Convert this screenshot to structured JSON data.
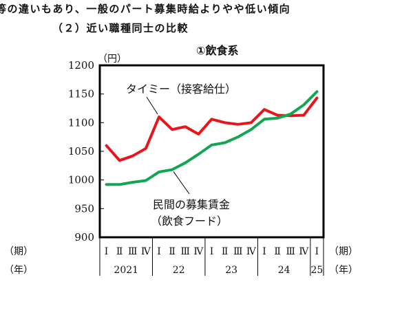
{
  "header": {
    "line1": "等の違いもあり、一般のパート募集時給よりやや低い傾向",
    "line2": "（２）近い職種同士の比較",
    "chart_title": "①飲食系"
  },
  "colors": {
    "timee": "#e8161b",
    "private": "#13a650",
    "frame": "#000000"
  },
  "chart_data": {
    "type": "line",
    "title": "①飲食系",
    "ylabel": "（円）",
    "ylim": [
      900,
      1200
    ],
    "yticks": [
      900,
      950,
      1000,
      1050,
      1100,
      1150,
      1200
    ],
    "quarter_labels": [
      "Ⅰ",
      "Ⅱ",
      "Ⅲ",
      "Ⅳ",
      "Ⅰ",
      "Ⅱ",
      "Ⅲ",
      "Ⅳ",
      "Ⅰ",
      "Ⅱ",
      "Ⅲ",
      "Ⅳ",
      "Ⅰ",
      "Ⅱ",
      "Ⅲ",
      "Ⅳ",
      "Ⅰ"
    ],
    "year_labels": [
      "2021",
      "22",
      "23",
      "24",
      "25"
    ],
    "period_label": "（期）",
    "year_label": "（年）",
    "series": [
      {
        "name": "タイミー（接客給仕）",
        "values": [
          1060,
          1034,
          1042,
          1055,
          1110,
          1088,
          1093,
          1080,
          1106,
          1100,
          1097,
          1100,
          1123,
          1113,
          1112,
          1113,
          1143
        ]
      },
      {
        "name": "民間の募集賃金（飲食フード）",
        "label_lines": [
          "民間の募集賃金",
          "（飲食フード）"
        ],
        "values": [
          992,
          992,
          996,
          999,
          1014,
          1018,
          1030,
          1045,
          1061,
          1065,
          1075,
          1088,
          1106,
          1108,
          1115,
          1131,
          1154
        ]
      }
    ]
  }
}
